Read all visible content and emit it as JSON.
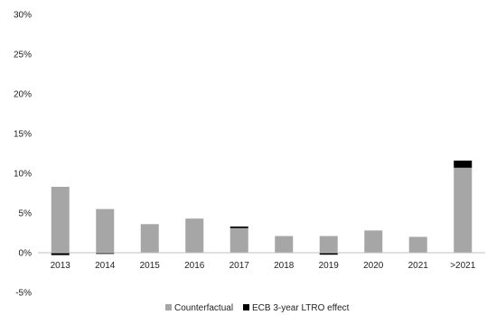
{
  "chart_data": {
    "type": "bar",
    "stacked": true,
    "categories": [
      "2013",
      "2014",
      "2015",
      "2016",
      "2017",
      "2018",
      "2019",
      "2020",
      "2021",
      ">2021"
    ],
    "series": [
      {
        "name": "Counterfactual",
        "color": "#a6a6a6",
        "values": [
          8.3,
          5.5,
          3.6,
          4.3,
          3.1,
          2.1,
          2.1,
          2.8,
          2.0,
          10.7
        ]
      },
      {
        "name": "ECB 3-year LTRO effect",
        "color": "#000000",
        "values": [
          -0.3,
          -0.15,
          0.0,
          0.0,
          0.2,
          0.0,
          -0.25,
          0.0,
          0.0,
          0.9
        ]
      }
    ],
    "y_ticks": [
      "-5%",
      "0%",
      "5%",
      "10%",
      "15%",
      "20%",
      "25%",
      "30%"
    ],
    "ylim": [
      -5,
      30
    ],
    "grid": false,
    "legend_position": "bottom"
  }
}
